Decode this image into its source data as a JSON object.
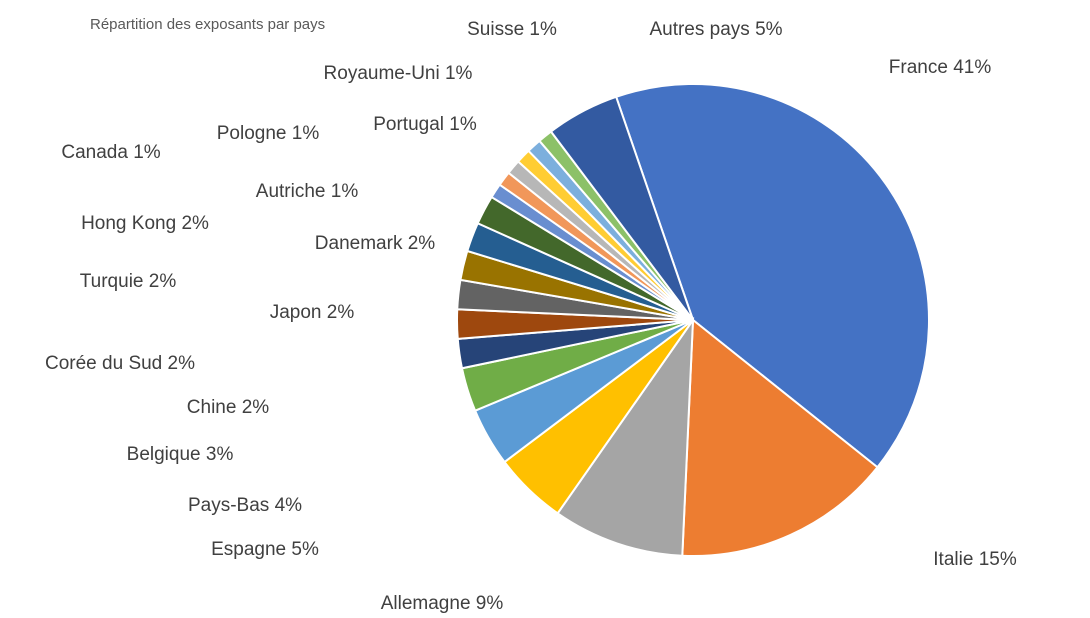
{
  "chart_data": {
    "type": "pie",
    "title": "Répartition des exposants par pays",
    "categories": [
      "France",
      "Italie",
      "Allemagne",
      "Espagne",
      "Pays-Bas",
      "Belgique",
      "Chine",
      "Corée du Sud",
      "Japon",
      "Turquie",
      "Hong Kong",
      "Danemark",
      "Canada",
      "Autriche",
      "Pologne",
      "Portugal",
      "Royaume-Uni",
      "Suisse",
      "Autres pays"
    ],
    "values": [
      41,
      15,
      9,
      5,
      4,
      3,
      2,
      2,
      2,
      2,
      2,
      2,
      1,
      1,
      1,
      1,
      1,
      1,
      5
    ],
    "value_labels": [
      "41%",
      "15%",
      "9%",
      "5%",
      "4%",
      "3%",
      "2%",
      "2%",
      "2%",
      "2%",
      "2%",
      "2%",
      "1%",
      "1%",
      "1%",
      "1%",
      "1%",
      "1%",
      "5%"
    ],
    "colors": [
      "#4472c4",
      "#ed7d31",
      "#a5a5a5",
      "#ffc000",
      "#5b9bd5",
      "#70ad47",
      "#264478",
      "#9e480e",
      "#636363",
      "#997300",
      "#255e91",
      "#43682b",
      "#698ed0",
      "#f1975a",
      "#b7b7b7",
      "#ffcd33",
      "#7cafdd",
      "#8cc168",
      "#335aa1"
    ]
  }
}
